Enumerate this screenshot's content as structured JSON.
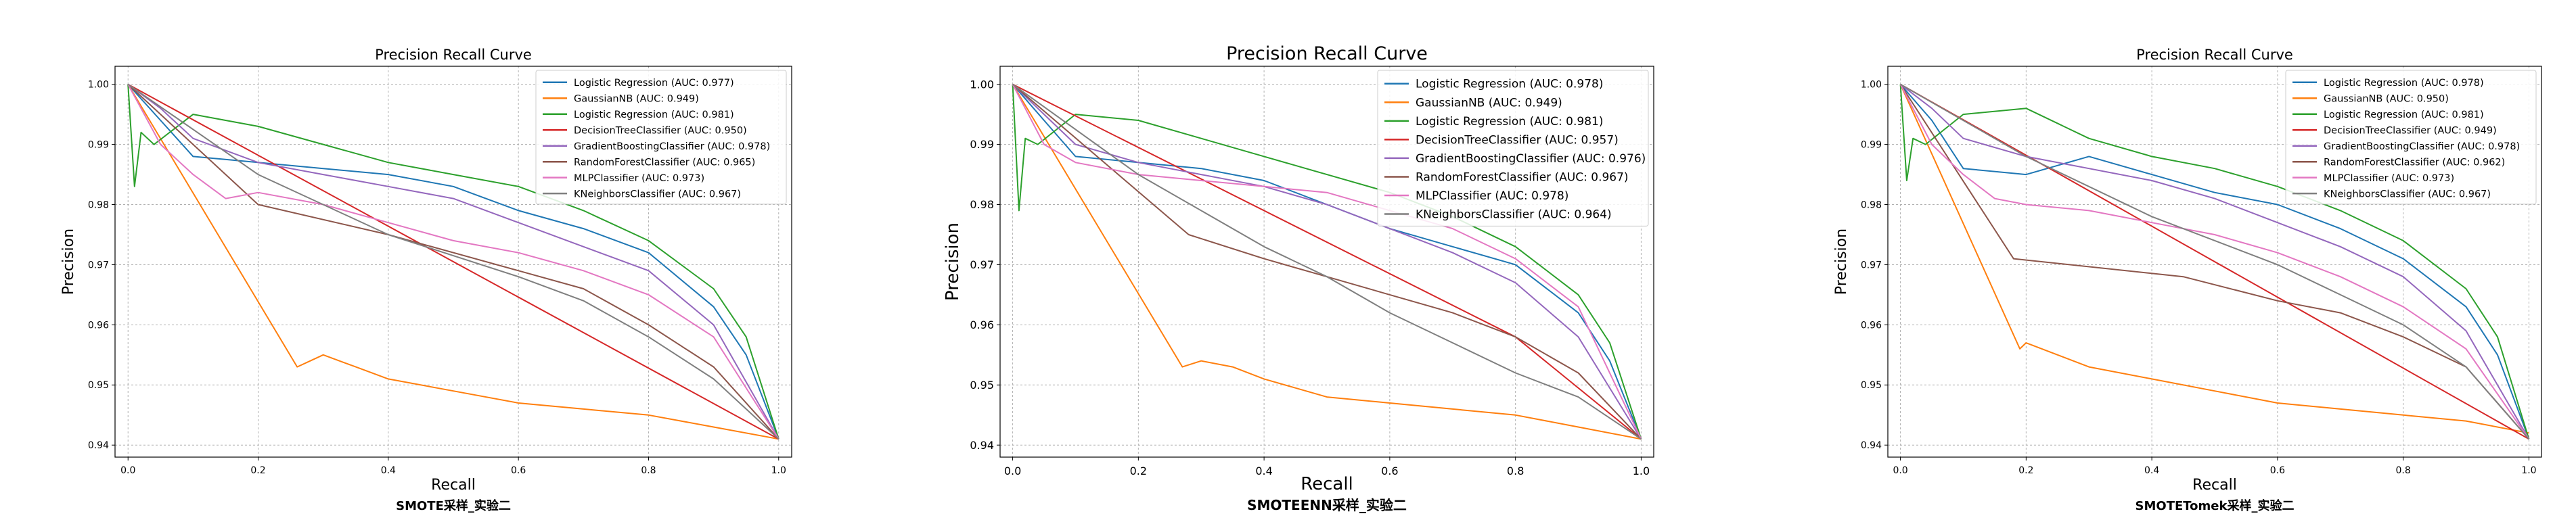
{
  "chart_data": [
    {
      "type": "line",
      "title": "Precision Recall Curve",
      "subtitle": "SMOTE采样_实验二",
      "xlabel": "Recall",
      "ylabel": "Precision",
      "xlim": [
        -0.02,
        1.02
      ],
      "ylim": [
        0.938,
        1.003
      ],
      "xticks": [
        "0.0",
        "0.2",
        "0.4",
        "0.6",
        "0.8",
        "1.0"
      ],
      "yticks": [
        "0.94",
        "0.95",
        "0.96",
        "0.97",
        "0.98",
        "0.99",
        "1.00"
      ],
      "grid": true,
      "legend_position": "top-right",
      "series": [
        {
          "name": "Logistic Regression (AUC: 0.977)",
          "color": "#1f77b4",
          "x": [
            0,
            0.05,
            0.1,
            0.2,
            0.3,
            0.4,
            0.5,
            0.6,
            0.7,
            0.8,
            0.9,
            0.95,
            1.0
          ],
          "y": [
            1.0,
            0.994,
            0.988,
            0.987,
            0.986,
            0.985,
            0.983,
            0.979,
            0.976,
            0.972,
            0.963,
            0.955,
            0.941
          ]
        },
        {
          "name": "GaussianNB (AUC: 0.949)",
          "color": "#ff7f0e",
          "x": [
            0,
            0.26,
            0.28,
            0.3,
            0.35,
            0.4,
            0.5,
            0.6,
            0.7,
            0.8,
            0.9,
            1.0
          ],
          "y": [
            1.0,
            0.953,
            0.954,
            0.955,
            0.953,
            0.951,
            0.949,
            0.947,
            0.946,
            0.945,
            0.943,
            0.941
          ]
        },
        {
          "name": "Logistic Regression (AUC: 0.981)",
          "color": "#2ca02c",
          "x": [
            0,
            0.01,
            0.02,
            0.04,
            0.1,
            0.2,
            0.3,
            0.4,
            0.5,
            0.6,
            0.7,
            0.8,
            0.9,
            0.95,
            1.0
          ],
          "y": [
            1.0,
            0.983,
            0.992,
            0.99,
            0.995,
            0.993,
            0.99,
            0.987,
            0.985,
            0.983,
            0.979,
            0.974,
            0.966,
            0.958,
            0.941
          ]
        },
        {
          "name": "DecisionTreeClassifier (AUC: 0.950)",
          "color": "#d62728",
          "x": [
            0,
            1.0
          ],
          "y": [
            1.0,
            0.941
          ]
        },
        {
          "name": "GradientBoostingClassifier (AUC: 0.978)",
          "color": "#9467bd",
          "x": [
            0,
            0.05,
            0.1,
            0.2,
            0.3,
            0.4,
            0.5,
            0.6,
            0.7,
            0.8,
            0.9,
            1.0
          ],
          "y": [
            1.0,
            0.996,
            0.991,
            0.987,
            0.985,
            0.983,
            0.981,
            0.977,
            0.973,
            0.969,
            0.96,
            0.941
          ]
        },
        {
          "name": "RandomForestClassifier (AUC: 0.965)",
          "color": "#8c564b",
          "x": [
            0,
            0.2,
            0.4,
            0.6,
            0.7,
            0.8,
            0.9,
            1.0
          ],
          "y": [
            1.0,
            0.98,
            0.975,
            0.969,
            0.966,
            0.96,
            0.953,
            0.941
          ]
        },
        {
          "name": "MLPClassifier (AUC: 0.973)",
          "color": "#e377c2",
          "x": [
            0,
            0.05,
            0.1,
            0.15,
            0.2,
            0.3,
            0.4,
            0.5,
            0.6,
            0.7,
            0.8,
            0.9,
            1.0
          ],
          "y": [
            1.0,
            0.99,
            0.985,
            0.981,
            0.982,
            0.98,
            0.977,
            0.974,
            0.972,
            0.969,
            0.965,
            0.958,
            0.941
          ]
        },
        {
          "name": "KNeighborsClassifier (AUC: 0.967)",
          "color": "#7f7f7f",
          "x": [
            0,
            0.2,
            0.4,
            0.6,
            0.7,
            0.8,
            0.9,
            1.0
          ],
          "y": [
            1.0,
            0.985,
            0.975,
            0.968,
            0.964,
            0.958,
            0.951,
            0.941
          ]
        }
      ]
    },
    {
      "type": "line",
      "title": "Precision Recall Curve",
      "subtitle": "SMOTEENN采样_实验二",
      "xlabel": "Recall",
      "ylabel": "Precision",
      "xlim": [
        -0.02,
        1.02
      ],
      "ylim": [
        0.938,
        1.003
      ],
      "xticks": [
        "0.0",
        "0.2",
        "0.4",
        "0.6",
        "0.8",
        "1.0"
      ],
      "yticks": [
        "0.94",
        "0.95",
        "0.96",
        "0.97",
        "0.98",
        "0.99",
        "1.00"
      ],
      "grid": true,
      "legend_position": "top-right",
      "series": [
        {
          "name": "Logistic Regression (AUC: 0.978)",
          "color": "#1f77b4",
          "x": [
            0,
            0.05,
            0.1,
            0.2,
            0.3,
            0.4,
            0.5,
            0.6,
            0.7,
            0.8,
            0.9,
            0.95,
            1.0
          ],
          "y": [
            1.0,
            0.994,
            0.988,
            0.987,
            0.986,
            0.984,
            0.98,
            0.976,
            0.973,
            0.97,
            0.962,
            0.954,
            0.941
          ]
        },
        {
          "name": "GaussianNB (AUC: 0.949)",
          "color": "#ff7f0e",
          "x": [
            0,
            0.27,
            0.3,
            0.35,
            0.4,
            0.5,
            0.6,
            0.7,
            0.8,
            0.9,
            1.0
          ],
          "y": [
            1.0,
            0.953,
            0.954,
            0.953,
            0.951,
            0.948,
            0.947,
            0.946,
            0.945,
            0.943,
            0.941
          ]
        },
        {
          "name": "Logistic Regression (AUC: 0.981)",
          "color": "#2ca02c",
          "x": [
            0,
            0.01,
            0.02,
            0.04,
            0.1,
            0.2,
            0.3,
            0.4,
            0.5,
            0.6,
            0.7,
            0.8,
            0.9,
            0.95,
            1.0
          ],
          "y": [
            1.0,
            0.979,
            0.991,
            0.99,
            0.995,
            0.994,
            0.991,
            0.988,
            0.985,
            0.982,
            0.978,
            0.973,
            0.965,
            0.957,
            0.941
          ]
        },
        {
          "name": "DecisionTreeClassifier (AUC: 0.957)",
          "color": "#d62728",
          "x": [
            0,
            0.8,
            1.0
          ],
          "y": [
            1.0,
            0.958,
            0.941
          ]
        },
        {
          "name": "GradientBoostingClassifier (AUC: 0.976)",
          "color": "#9467bd",
          "x": [
            0,
            0.05,
            0.1,
            0.2,
            0.3,
            0.4,
            0.5,
            0.6,
            0.7,
            0.8,
            0.9,
            1.0
          ],
          "y": [
            1.0,
            0.995,
            0.99,
            0.987,
            0.985,
            0.983,
            0.98,
            0.976,
            0.972,
            0.967,
            0.958,
            0.941
          ]
        },
        {
          "name": "RandomForestClassifier (AUC: 0.967)",
          "color": "#8c564b",
          "x": [
            0,
            0.28,
            0.4,
            0.5,
            0.6,
            0.7,
            0.8,
            0.9,
            1.0
          ],
          "y": [
            1.0,
            0.975,
            0.971,
            0.968,
            0.965,
            0.962,
            0.958,
            0.952,
            0.941
          ]
        },
        {
          "name": "MLPClassifier (AUC: 0.978)",
          "color": "#e377c2",
          "x": [
            0,
            0.05,
            0.1,
            0.2,
            0.3,
            0.4,
            0.5,
            0.6,
            0.7,
            0.8,
            0.9,
            1.0
          ],
          "y": [
            1.0,
            0.99,
            0.987,
            0.985,
            0.984,
            0.983,
            0.982,
            0.979,
            0.976,
            0.971,
            0.963,
            0.941
          ]
        },
        {
          "name": "KNeighborsClassifier (AUC: 0.964)",
          "color": "#7f7f7f",
          "x": [
            0,
            0.2,
            0.4,
            0.5,
            0.6,
            0.7,
            0.8,
            0.9,
            1.0
          ],
          "y": [
            1.0,
            0.985,
            0.973,
            0.968,
            0.962,
            0.957,
            0.952,
            0.948,
            0.941
          ]
        }
      ]
    },
    {
      "type": "line",
      "title": "Precision Recall Curve",
      "subtitle": "SMOTETomek采样_实验二",
      "xlabel": "Recall",
      "ylabel": "Precision",
      "xlim": [
        -0.02,
        1.02
      ],
      "ylim": [
        0.938,
        1.003
      ],
      "xticks": [
        "0.0",
        "0.2",
        "0.4",
        "0.6",
        "0.8",
        "1.0"
      ],
      "yticks": [
        "0.94",
        "0.95",
        "0.96",
        "0.97",
        "0.98",
        "0.99",
        "1.00"
      ],
      "grid": true,
      "legend_position": "top-right",
      "series": [
        {
          "name": "Logistic Regression (AUC: 0.978)",
          "color": "#1f77b4",
          "x": [
            0,
            0.05,
            0.1,
            0.2,
            0.3,
            0.4,
            0.5,
            0.6,
            0.7,
            0.8,
            0.9,
            0.95,
            1.0
          ],
          "y": [
            1.0,
            0.994,
            0.986,
            0.985,
            0.988,
            0.985,
            0.982,
            0.98,
            0.976,
            0.971,
            0.963,
            0.955,
            0.941
          ]
        },
        {
          "name": "GaussianNB (AUC: 0.950)",
          "color": "#ff7f0e",
          "x": [
            0,
            0.19,
            0.2,
            0.25,
            0.3,
            0.4,
            0.5,
            0.6,
            0.7,
            0.8,
            0.9,
            1.0
          ],
          "y": [
            1.0,
            0.956,
            0.957,
            0.955,
            0.953,
            0.951,
            0.949,
            0.947,
            0.946,
            0.945,
            0.944,
            0.942
          ]
        },
        {
          "name": "Logistic Regression (AUC: 0.981)",
          "color": "#2ca02c",
          "x": [
            0,
            0.01,
            0.02,
            0.04,
            0.1,
            0.2,
            0.3,
            0.4,
            0.5,
            0.6,
            0.7,
            0.8,
            0.9,
            0.95,
            1.0
          ],
          "y": [
            1.0,
            0.984,
            0.991,
            0.99,
            0.995,
            0.996,
            0.991,
            0.988,
            0.986,
            0.983,
            0.979,
            0.974,
            0.966,
            0.958,
            0.941
          ]
        },
        {
          "name": "DecisionTreeClassifier (AUC: 0.949)",
          "color": "#d62728",
          "x": [
            0,
            1.0
          ],
          "y": [
            1.0,
            0.941
          ]
        },
        {
          "name": "GradientBoostingClassifier (AUC: 0.978)",
          "color": "#9467bd",
          "x": [
            0,
            0.05,
            0.1,
            0.2,
            0.3,
            0.4,
            0.5,
            0.6,
            0.7,
            0.8,
            0.9,
            1.0
          ],
          "y": [
            1.0,
            0.996,
            0.991,
            0.988,
            0.986,
            0.984,
            0.981,
            0.977,
            0.973,
            0.968,
            0.959,
            0.941
          ]
        },
        {
          "name": "RandomForestClassifier (AUC: 0.962)",
          "color": "#8c564b",
          "x": [
            0,
            0.18,
            0.45,
            0.6,
            0.7,
            0.8,
            0.9,
            1.0
          ],
          "y": [
            1.0,
            0.971,
            0.968,
            0.964,
            0.962,
            0.958,
            0.953,
            0.941
          ]
        },
        {
          "name": "MLPClassifier (AUC: 0.973)",
          "color": "#e377c2",
          "x": [
            0,
            0.05,
            0.1,
            0.15,
            0.2,
            0.3,
            0.4,
            0.5,
            0.6,
            0.7,
            0.8,
            0.9,
            1.0
          ],
          "y": [
            1.0,
            0.99,
            0.985,
            0.981,
            0.98,
            0.979,
            0.977,
            0.975,
            0.972,
            0.968,
            0.963,
            0.956,
            0.941
          ]
        },
        {
          "name": "KNeighborsClassifier (AUC: 0.967)",
          "color": "#7f7f7f",
          "x": [
            0,
            0.2,
            0.4,
            0.6,
            0.7,
            0.8,
            0.9,
            1.0
          ],
          "y": [
            1.0,
            0.988,
            0.978,
            0.97,
            0.965,
            0.96,
            0.953,
            0.941
          ]
        }
      ]
    }
  ]
}
